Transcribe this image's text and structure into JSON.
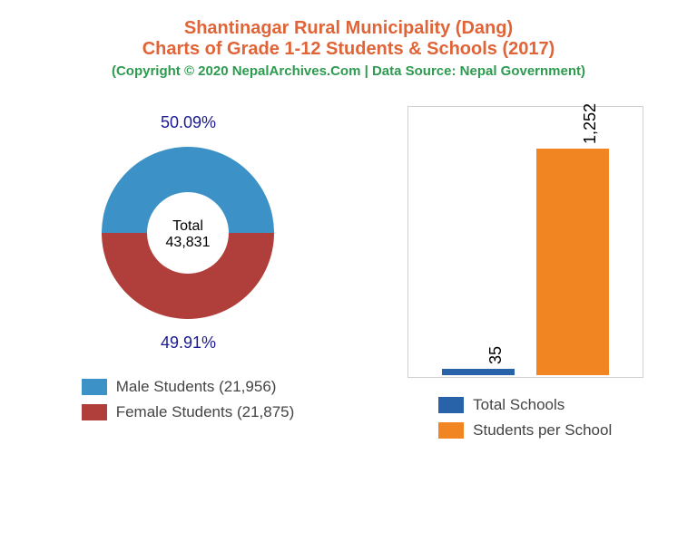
{
  "title": {
    "line1": "Shantinagar Rural Municipality (Dang)",
    "line2": "Charts of Grade 1-12 Students & Schools (2017)",
    "color": "#e06437",
    "fontsize": 20
  },
  "copyright": {
    "text": "(Copyright © 2020 NepalArchives.Com | Data Source: Nepal Government)",
    "color": "#2d9b4f",
    "fontsize": 15
  },
  "donut": {
    "total_label": "Total",
    "total_value": "43,831",
    "pct_color": "#1a1a90",
    "slices": [
      {
        "label": "Male Students (21,956)",
        "pct": "50.09%",
        "value": 50.09,
        "color": "#3c92c6"
      },
      {
        "label": "Female Students (21,875)",
        "pct": "49.91%",
        "value": 49.91,
        "color": "#b03e3a"
      }
    ],
    "inner_radius": 45,
    "outer_radius": 95
  },
  "bar_chart": {
    "border_color": "#d0d0d0",
    "background": "#ffffff",
    "ymax": 1300,
    "bars": [
      {
        "label": "35",
        "value": 35,
        "color": "#2862a8",
        "legend": "Total Schools"
      },
      {
        "label": "1,252",
        "value": 1252,
        "color": "#f08522",
        "legend": "Students per School"
      }
    ]
  }
}
